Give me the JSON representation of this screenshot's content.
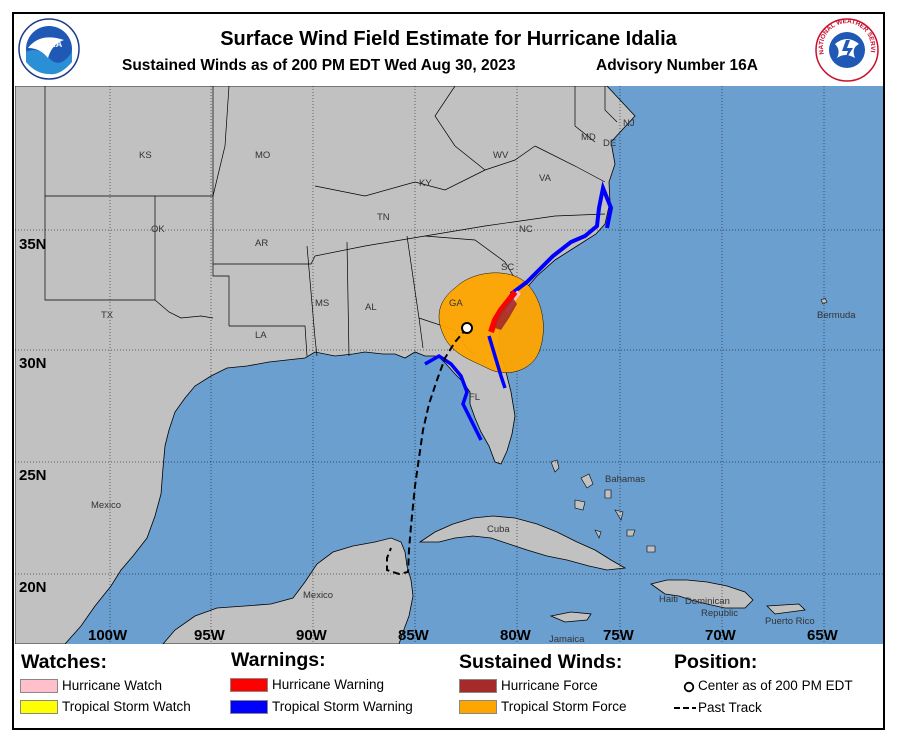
{
  "header": {
    "title": "Surface Wind Field Estimate for Hurricane Idalia",
    "subtitle": "Sustained Winds as of 200 PM EDT Wed Aug 30, 2023",
    "advisory": "Advisory Number 16A",
    "left_logo": "NOAA",
    "right_logo": "NATIONAL WEATHER SERVICE"
  },
  "map": {
    "lat_labels": [
      "35N",
      "30N",
      "25N",
      "20N"
    ],
    "lon_labels": [
      "100W",
      "95W",
      "90W",
      "85W",
      "80W",
      "75W",
      "70W",
      "65W"
    ],
    "region_labels": {
      "ks": "KS",
      "mo": "MO",
      "ky": "KY",
      "wv": "WV",
      "va": "VA",
      "de": "DE",
      "nj": "NJ",
      "md": "MD",
      "ok": "OK",
      "ar": "AR",
      "tn": "TN",
      "nc": "NC",
      "sc": "SC",
      "tx": "TX",
      "ms": "MS",
      "al": "AL",
      "ga": "GA",
      "la": "LA",
      "fl": "FL",
      "bermuda": "Bermuda",
      "bahamas": "Bahamas",
      "mexico_a": "Mexico",
      "mexico_b": "Mexico",
      "cuba": "Cuba",
      "haiti": "Haiti",
      "dominican": "Dominican",
      "republic": "Republic",
      "jamaica": "Jamaica",
      "puerto_rico": "Puerto Rico"
    },
    "colors": {
      "ocean": "#6a9fcf",
      "land": "#c1c1c1",
      "tropical_storm_force": "#ffa500",
      "hurricane_force": "#a52a2a",
      "hurricane_warning": "#ff0000",
      "tropical_storm_warning": "#0000ff",
      "hurricane_watch": "#ffc0cb"
    }
  },
  "legend": {
    "watches": {
      "heading": "Watches:",
      "items": [
        {
          "label": "Hurricane Watch",
          "color": "#ffc0cb"
        },
        {
          "label": "Tropical Storm Watch",
          "color": "#ffff00"
        }
      ]
    },
    "warnings": {
      "heading": "Warnings:",
      "items": [
        {
          "label": "Hurricane Warning",
          "color": "#ff0000"
        },
        {
          "label": "Tropical Storm Warning",
          "color": "#0000ff"
        }
      ]
    },
    "winds": {
      "heading": "Sustained Winds:",
      "items": [
        {
          "label": "Hurricane Force",
          "color": "#a52a2a"
        },
        {
          "label": "Tropical Storm Force",
          "color": "#ffa500"
        }
      ]
    },
    "position": {
      "heading": "Position:",
      "center_label": "Center as of 200 PM EDT",
      "track_label": "Past Track"
    }
  }
}
